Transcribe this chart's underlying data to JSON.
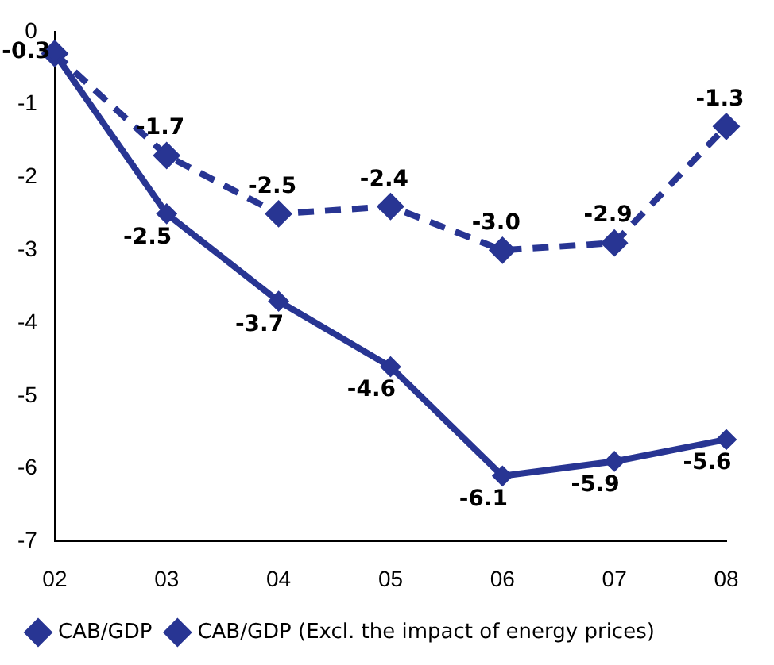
{
  "chart_data": {
    "type": "line",
    "categories": [
      "02",
      "03",
      "04",
      "05",
      "06",
      "07",
      "08"
    ],
    "series": [
      {
        "name": "CAB/GDP",
        "color": "#283593",
        "values": [
          -0.3,
          -2.5,
          -3.7,
          -4.6,
          -6.1,
          -5.9,
          -5.6
        ],
        "line_style": "solid",
        "value_labels": [
          "-0.3",
          "-2.5",
          "-3.7",
          "-4.6",
          "-6.1",
          "-5.9",
          "-5.6"
        ]
      },
      {
        "name": "CAB/GDP (Excl. the impact of energy prices)",
        "color": "#283593",
        "values": [
          -0.3,
          -1.7,
          -2.5,
          -2.4,
          -3.0,
          -2.9,
          -1.3
        ],
        "line_style": "dashed",
        "value_labels": [
          null,
          "-1.7",
          "-2.5",
          "-2.4",
          "-3.0",
          "-2.9",
          "-1.3"
        ]
      }
    ],
    "ylim": [
      -7,
      0
    ],
    "yticks": [
      0,
      -1,
      -2,
      -3,
      -4,
      -5,
      -6,
      -7
    ],
    "grid": false,
    "legend": "bottom left",
    "marker": "diamond"
  }
}
